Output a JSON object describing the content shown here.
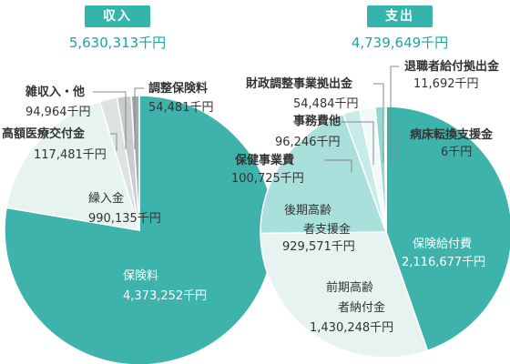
{
  "colors": {
    "accent": "#35b4ab",
    "total_text": "#1aa89d",
    "label_text": "#333333",
    "inside_label_light": "#ffffff",
    "inside_label_dark": "#333333",
    "leader_line": "#888888"
  },
  "chart_data": [
    {
      "type": "pie",
      "title": "収入",
      "total": "5,630,313千円",
      "unit": "千円",
      "slices": [
        {
          "label": "保険料",
          "value": 4373252,
          "display": "4,373,252千円",
          "color": "#3db3ab"
        },
        {
          "label": "繰入金",
          "value": 990135,
          "display": "990,135千円",
          "color": "#e6f3f1"
        },
        {
          "label": "高額医療交付金",
          "value": 117481,
          "display": "117,481千円",
          "color": "#dde3e2"
        },
        {
          "label": "雑収入・他",
          "value": 94964,
          "display": "94,964千円",
          "color": "#c8cccc"
        },
        {
          "label": "調整保険料",
          "value": 54481,
          "display": "54,481千円",
          "color": "#a4aaaa"
        }
      ]
    },
    {
      "type": "pie",
      "title": "支出",
      "total": "4,739,649千円",
      "unit": "千円",
      "slices": [
        {
          "label": "保険給付費",
          "value": 2116677,
          "display": "2,116,677千円",
          "color": "#3db3ab"
        },
        {
          "label": "前期高齢者納付金",
          "value": 1430248,
          "display": "1,430,248千円",
          "color": "#e6f3f1"
        },
        {
          "label": "後期高齢者支援金",
          "value": 929571,
          "display": "929,571千円",
          "color": "#a9e0dc"
        },
        {
          "label": "保健事業費",
          "value": 100725,
          "display": "100,725千円",
          "color": "#c6ebe8"
        },
        {
          "label": "事務費他",
          "value": 96246,
          "display": "96,246千円",
          "color": "#f2faf9"
        },
        {
          "label": "財政調整事業拠出金",
          "value": 54484,
          "display": "54,484千円",
          "color": "#92d9d3"
        },
        {
          "label": "退職者給付拠出金",
          "value": 11692,
          "display": "11,692千円",
          "color": "#5cc4bc"
        },
        {
          "label": "病床転換支援金",
          "value": 6,
          "display": "6千円",
          "color": "#7fd0ca"
        }
      ]
    }
  ]
}
